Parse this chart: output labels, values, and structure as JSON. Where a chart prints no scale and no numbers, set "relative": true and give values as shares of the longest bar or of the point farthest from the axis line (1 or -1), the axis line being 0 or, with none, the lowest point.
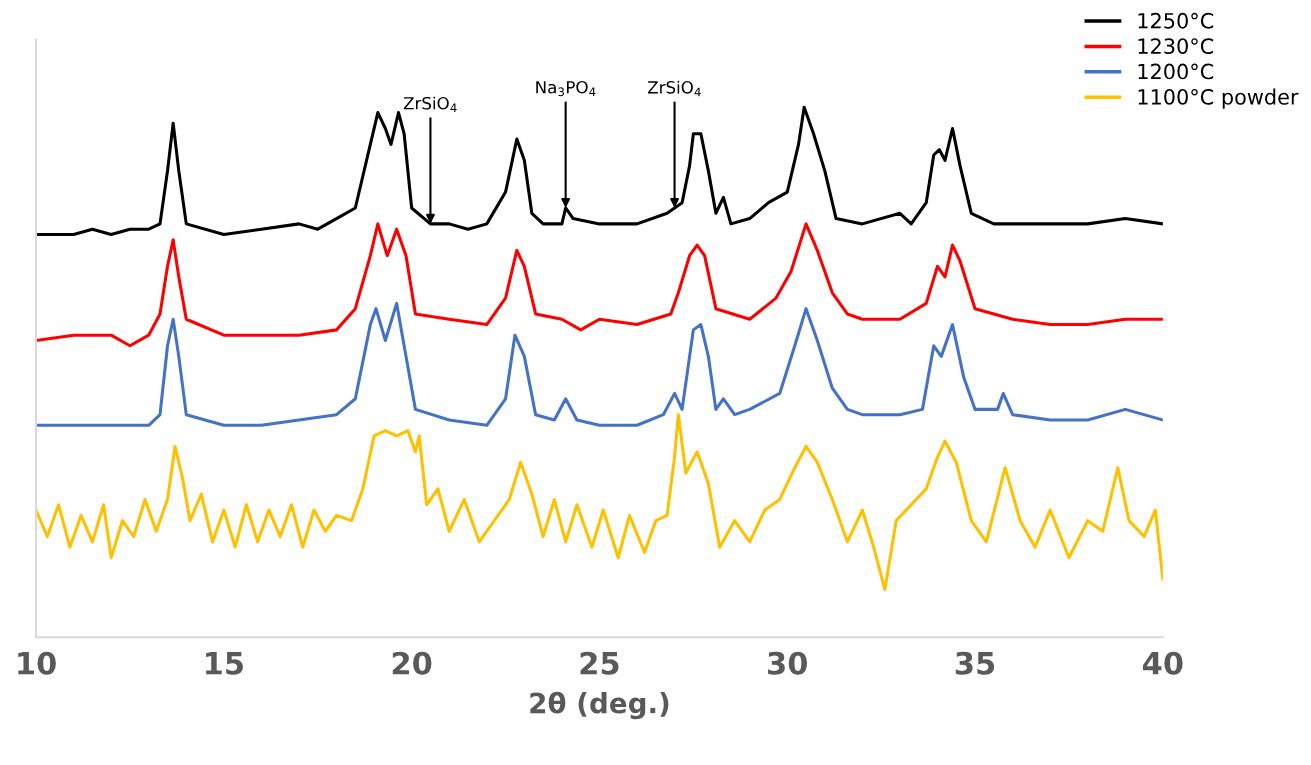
{
  "chart_data": {
    "type": "line",
    "relative": true,
    "xlabel": "2θ (deg.)",
    "xlim": [
      10,
      40
    ],
    "xticks": [
      10,
      15,
      20,
      25,
      30,
      35,
      40
    ],
    "grid": false,
    "legend": "top right",
    "tick_labels": "x",
    "marker": "none",
    "line_style": "solid",
    "annotations": [
      {
        "text": "ZrSiO$_{4}$",
        "x": 20.5,
        "y": 0.78
      },
      {
        "text": "Na$_{3}$PO$_{4}$",
        "x": 24.1,
        "y": 0.81
      },
      {
        "text": "ZrSiO$_{4}$",
        "x": 27.0,
        "y": 0.81
      }
    ],
    "series": [
      {
        "name": "1250°C",
        "color": "#000000",
        "x": [
          10,
          11,
          11.5,
          12,
          12.5,
          13,
          13.3,
          13.5,
          13.65,
          13.8,
          14,
          15,
          16,
          17,
          17.5,
          18,
          18.5,
          18.9,
          19.1,
          19.3,
          19.45,
          19.65,
          19.8,
          20.0,
          20.5,
          21,
          21.5,
          22,
          22.5,
          22.8,
          23.0,
          23.2,
          23.5,
          24,
          24.1,
          24.3,
          25,
          26,
          26.8,
          27.0,
          27.2,
          27.4,
          27.5,
          27.7,
          27.9,
          28.1,
          28.3,
          28.5,
          29,
          29.5,
          30,
          30.3,
          30.45,
          30.7,
          31,
          31.3,
          32,
          33,
          33.3,
          33.7,
          33.9,
          34.05,
          34.2,
          34.4,
          34.6,
          34.9,
          35.5,
          36,
          37,
          38,
          39,
          40
        ],
        "values": [
          0.76,
          0.76,
          0.77,
          0.76,
          0.77,
          0.77,
          0.78,
          0.88,
          0.97,
          0.88,
          0.78,
          0.76,
          0.77,
          0.78,
          0.77,
          0.79,
          0.81,
          0.93,
          0.99,
          0.96,
          0.93,
          0.99,
          0.95,
          0.81,
          0.78,
          0.78,
          0.77,
          0.78,
          0.84,
          0.94,
          0.9,
          0.8,
          0.78,
          0.78,
          0.81,
          0.79,
          0.78,
          0.78,
          0.8,
          0.81,
          0.82,
          0.89,
          0.95,
          0.95,
          0.88,
          0.8,
          0.83,
          0.78,
          0.79,
          0.82,
          0.84,
          0.93,
          1.0,
          0.95,
          0.88,
          0.79,
          0.78,
          0.8,
          0.78,
          0.82,
          0.91,
          0.92,
          0.9,
          0.96,
          0.89,
          0.8,
          0.78,
          0.78,
          0.78,
          0.78,
          0.79,
          0.78
        ]
      },
      {
        "name": "1230°C",
        "color": "#ff0000",
        "x": [
          10,
          11,
          12,
          12.5,
          13,
          13.3,
          13.5,
          13.65,
          13.8,
          14.0,
          15,
          16,
          17,
          18,
          18.5,
          18.9,
          19.1,
          19.35,
          19.6,
          19.85,
          20.1,
          21,
          22,
          22.5,
          22.8,
          23.0,
          23.3,
          24,
          24.5,
          25,
          26,
          26.9,
          27.1,
          27.4,
          27.6,
          27.8,
          28.1,
          29,
          29.7,
          30.1,
          30.5,
          30.8,
          31.2,
          31.6,
          32,
          33,
          33.7,
          34.0,
          34.2,
          34.4,
          34.6,
          35,
          36,
          37,
          38,
          39,
          40
        ],
        "values": [
          0.56,
          0.57,
          0.57,
          0.55,
          0.57,
          0.61,
          0.7,
          0.75,
          0.68,
          0.6,
          0.57,
          0.57,
          0.57,
          0.58,
          0.62,
          0.72,
          0.78,
          0.72,
          0.77,
          0.72,
          0.61,
          0.6,
          0.59,
          0.64,
          0.73,
          0.7,
          0.61,
          0.6,
          0.58,
          0.6,
          0.59,
          0.61,
          0.65,
          0.72,
          0.74,
          0.72,
          0.62,
          0.6,
          0.64,
          0.69,
          0.78,
          0.73,
          0.65,
          0.61,
          0.6,
          0.6,
          0.63,
          0.7,
          0.68,
          0.74,
          0.71,
          0.62,
          0.6,
          0.59,
          0.59,
          0.6,
          0.6
        ]
      },
      {
        "name": "1200°C",
        "color": "#4472c4",
        "x": [
          10,
          11,
          12,
          13,
          13.3,
          13.5,
          13.65,
          13.8,
          14.0,
          15,
          16,
          17,
          18,
          18.5,
          18.9,
          19.05,
          19.3,
          19.6,
          19.8,
          20.1,
          21,
          22,
          22.5,
          22.75,
          23.0,
          23.3,
          23.8,
          24.1,
          24.4,
          25,
          26,
          26.7,
          27.0,
          27.2,
          27.5,
          27.7,
          27.9,
          28.1,
          28.3,
          28.6,
          29,
          29.8,
          30.2,
          30.5,
          30.8,
          31.2,
          31.6,
          32,
          33,
          33.6,
          33.9,
          34.1,
          34.4,
          34.7,
          35.0,
          35.6,
          35.75,
          36,
          37,
          38,
          39,
          40
        ],
        "values": [
          0.4,
          0.4,
          0.4,
          0.4,
          0.42,
          0.55,
          0.6,
          0.53,
          0.42,
          0.4,
          0.4,
          0.41,
          0.42,
          0.45,
          0.59,
          0.62,
          0.56,
          0.63,
          0.55,
          0.43,
          0.41,
          0.4,
          0.45,
          0.57,
          0.53,
          0.42,
          0.41,
          0.45,
          0.41,
          0.4,
          0.4,
          0.42,
          0.46,
          0.43,
          0.58,
          0.59,
          0.53,
          0.43,
          0.45,
          0.42,
          0.43,
          0.46,
          0.55,
          0.62,
          0.56,
          0.47,
          0.43,
          0.42,
          0.42,
          0.43,
          0.55,
          0.53,
          0.59,
          0.49,
          0.43,
          0.43,
          0.46,
          0.42,
          0.41,
          0.41,
          0.43,
          0.41
        ]
      },
      {
        "name": "1100°C powder",
        "color": "#ffc000",
        "x": [
          10,
          10.3,
          10.6,
          10.9,
          11.2,
          11.5,
          11.8,
          12.0,
          12.3,
          12.6,
          12.9,
          13.2,
          13.5,
          13.7,
          13.9,
          14.1,
          14.4,
          14.7,
          15.0,
          15.3,
          15.6,
          15.9,
          16.2,
          16.5,
          16.8,
          17.1,
          17.4,
          17.7,
          18.0,
          18.4,
          18.7,
          19.0,
          19.3,
          19.6,
          19.9,
          20.1,
          20.2,
          20.4,
          20.7,
          21.0,
          21.4,
          21.8,
          22.2,
          22.6,
          22.9,
          23.2,
          23.5,
          23.8,
          24.1,
          24.4,
          24.8,
          25.1,
          25.5,
          25.8,
          26.2,
          26.5,
          26.8,
          27.0,
          27.1,
          27.3,
          27.6,
          27.9,
          28.2,
          28.6,
          29.0,
          29.4,
          29.8,
          30.2,
          30.5,
          30.8,
          31.2,
          31.6,
          32.0,
          32.3,
          32.6,
          32.9,
          33.3,
          33.7,
          34.0,
          34.2,
          34.5,
          34.9,
          35.3,
          35.8,
          36.2,
          36.6,
          37.0,
          37.5,
          38.0,
          38.4,
          38.8,
          39.1,
          39.5,
          39.8,
          40
        ],
        "values": [
          0.24,
          0.19,
          0.25,
          0.17,
          0.23,
          0.18,
          0.25,
          0.15,
          0.22,
          0.19,
          0.26,
          0.2,
          0.26,
          0.36,
          0.3,
          0.22,
          0.27,
          0.18,
          0.24,
          0.17,
          0.25,
          0.18,
          0.24,
          0.19,
          0.25,
          0.17,
          0.24,
          0.2,
          0.23,
          0.22,
          0.28,
          0.38,
          0.39,
          0.38,
          0.39,
          0.35,
          0.38,
          0.25,
          0.28,
          0.2,
          0.26,
          0.18,
          0.22,
          0.26,
          0.33,
          0.27,
          0.19,
          0.26,
          0.18,
          0.25,
          0.17,
          0.24,
          0.15,
          0.23,
          0.16,
          0.22,
          0.23,
          0.34,
          0.42,
          0.31,
          0.35,
          0.29,
          0.17,
          0.22,
          0.18,
          0.24,
          0.26,
          0.32,
          0.36,
          0.33,
          0.26,
          0.18,
          0.24,
          0.17,
          0.09,
          0.22,
          0.25,
          0.28,
          0.34,
          0.37,
          0.33,
          0.22,
          0.18,
          0.32,
          0.22,
          0.17,
          0.24,
          0.15,
          0.22,
          0.2,
          0.32,
          0.22,
          0.19,
          0.24,
          0.11
        ]
      }
    ]
  }
}
